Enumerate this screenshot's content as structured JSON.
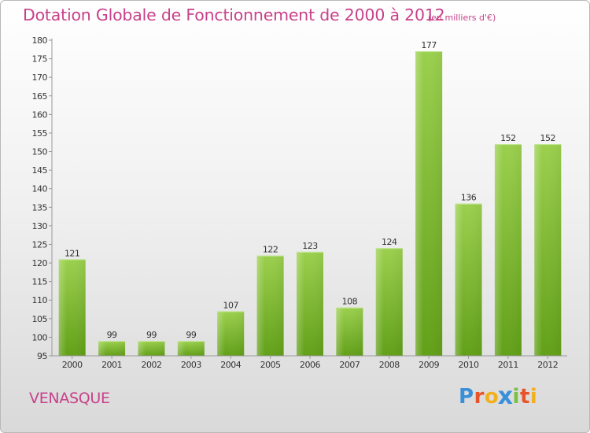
{
  "header": {
    "title": "Dotation Globale de Fonctionnement de 2000 à 2012",
    "unit": "(en milliers d'€)"
  },
  "footer": {
    "commune": "VENASQUE",
    "brand": [
      "P",
      "r",
      "o",
      "x",
      "i",
      "t",
      "i"
    ],
    "brand_colors": [
      "#3a8fd9",
      "#e8542a",
      "#f2b01e",
      "#3a8fd9",
      "#7ac143",
      "#e8542a",
      "#f2b01e"
    ]
  },
  "colors": {
    "bar_top": "#9bd04e",
    "bar_bottom": "#62a018",
    "text": "#333333",
    "accent": "#c8418a"
  },
  "chart_data": {
    "type": "bar",
    "categories": [
      "2000",
      "2001",
      "2002",
      "2003",
      "2004",
      "2005",
      "2006",
      "2007",
      "2008",
      "2009",
      "2010",
      "2011",
      "2012"
    ],
    "values": [
      121,
      99,
      99,
      99,
      107,
      122,
      123,
      108,
      124,
      177,
      136,
      152,
      152
    ],
    "ylim": [
      95,
      180
    ],
    "yticks": [
      95,
      100,
      105,
      110,
      115,
      120,
      125,
      130,
      135,
      140,
      145,
      150,
      155,
      160,
      165,
      170,
      175,
      180
    ],
    "title": "Dotation Globale de Fonctionnement de 2000 à 2012",
    "xlabel": "",
    "ylabel": "",
    "grid": false
  }
}
